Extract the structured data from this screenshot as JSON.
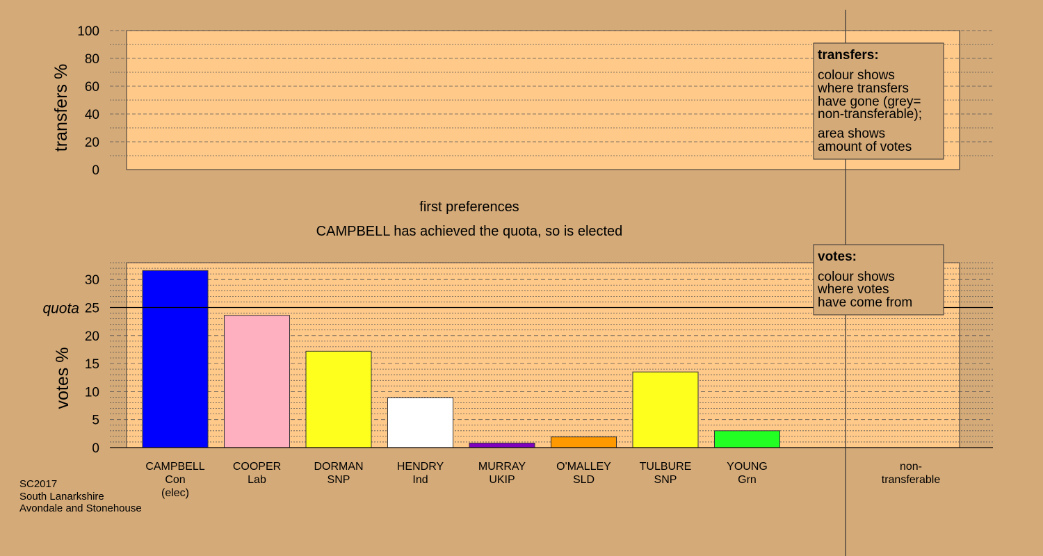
{
  "source": {
    "line1": "SC2017",
    "line2": "South Lanarkshire",
    "line3": "Avondale and Stonehouse"
  },
  "stage": {
    "title": "first preferences",
    "subtitle": "CAMPBELL has achieved the quota, so is elected"
  },
  "legends": {
    "transfers": {
      "title": "transfers:",
      "lines": [
        "colour shows",
        "where transfers",
        "have gone (grey=",
        "non-transferable);",
        "area shows",
        "amount of votes"
      ]
    },
    "votes": {
      "title": "votes:",
      "lines": [
        "colour shows",
        "where votes",
        "have come from"
      ]
    }
  },
  "chart_data": [
    {
      "type": "bar",
      "ylabel": "transfers %",
      "ylim": [
        0,
        100
      ],
      "yticks": [
        "0",
        "20",
        "40",
        "60",
        "80",
        "100"
      ],
      "values": []
    },
    {
      "type": "bar",
      "ylabel": "votes %",
      "ylim": [
        0,
        33
      ],
      "yticks": [
        "0",
        "5",
        "10",
        "15",
        "20",
        "25",
        "30"
      ],
      "quota": 25,
      "quota_label": "quota",
      "categories": [
        {
          "name": "CAMPBELL",
          "party": "Con",
          "note": "(elec)",
          "value": 31.6,
          "color": "#0000ff"
        },
        {
          "name": "COOPER",
          "party": "Lab",
          "note": "",
          "value": 23.6,
          "color": "#ffb0c0"
        },
        {
          "name": "DORMAN",
          "party": "SNP",
          "note": "",
          "value": 17.2,
          "color": "#ffff1e"
        },
        {
          "name": "HENDRY",
          "party": "Ind",
          "note": "",
          "value": 8.9,
          "color": "#ffffff"
        },
        {
          "name": "MURRAY",
          "party": "UKIP",
          "note": "",
          "value": 0.8,
          "color": "#8000c0"
        },
        {
          "name": "O'MALLEY",
          "party": "SLD",
          "note": "",
          "value": 1.9,
          "color": "#ff9900"
        },
        {
          "name": "TULBURE",
          "party": "SNP",
          "note": "",
          "value": 13.5,
          "color": "#ffff1e"
        },
        {
          "name": "YOUNG",
          "party": "Grn",
          "note": "",
          "value": 3.0,
          "color": "#22ff22"
        }
      ],
      "nontransferable_label": [
        "non-",
        "transferable"
      ]
    }
  ]
}
